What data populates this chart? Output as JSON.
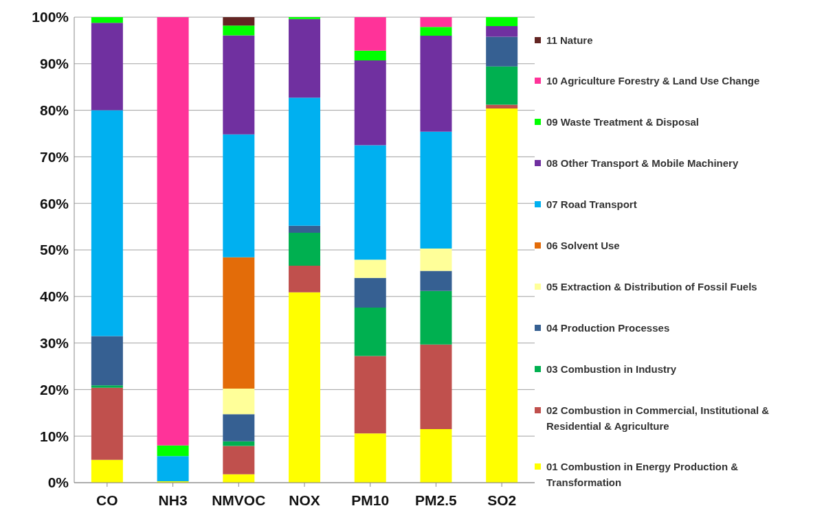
{
  "chart_data": {
    "type": "bar",
    "stacked": true,
    "categories": [
      "CO",
      "NH3",
      "NMVOC",
      "NOX",
      "PM10",
      "PM2.5",
      "SO2"
    ],
    "series": [
      {
        "name": "01 Combustion in Energy Production & Transformation",
        "color": "#ffff00",
        "values": [
          4.9,
          0.3,
          1.8,
          40.9,
          10.6,
          11.5,
          80.4
        ]
      },
      {
        "name": "02 Combustion in Commercial, Institutional & Residential & Agriculture",
        "color": "#c0504d",
        "values": [
          15.5,
          null,
          6.1,
          5.7,
          16.6,
          18.2,
          0.8
        ]
      },
      {
        "name": "03 Combustion in Industry",
        "color": "#00b050",
        "values": [
          0.5,
          null,
          1.0,
          7.1,
          10.4,
          11.5,
          8.2
        ]
      },
      {
        "name": "04 Production Processes",
        "color": "#366092",
        "values": [
          10.6,
          null,
          5.8,
          1.5,
          6.4,
          4.3,
          6.4
        ]
      },
      {
        "name": "05 Extraction & Distribution of Fossil Fuels",
        "color": "#ffff99",
        "values": [
          null,
          null,
          5.5,
          null,
          3.9,
          4.8,
          null
        ]
      },
      {
        "name": "06 Solvent Use",
        "color": "#e36c09",
        "values": [
          null,
          null,
          28.2,
          null,
          null,
          null,
          null
        ]
      },
      {
        "name": "07 Road Transport",
        "color": "#00b0f0",
        "values": [
          48.5,
          5.4,
          26.4,
          27.5,
          24.6,
          25.1,
          null
        ]
      },
      {
        "name": "08 Other Transport & Mobile Machinery",
        "color": "#7030a0",
        "values": [
          18.8,
          null,
          21.3,
          16.9,
          18.2,
          20.6,
          2.3
        ]
      },
      {
        "name": "09 Waste Treatment & Disposal",
        "color": "#00ff00",
        "values": [
          1.2,
          2.3,
          2.1,
          0.4,
          2.1,
          1.9,
          1.9
        ]
      },
      {
        "name": "10 Agriculture Forestry & Land Use Change",
        "color": "#ff3399",
        "values": [
          null,
          92.0,
          null,
          null,
          7.2,
          2.1,
          null
        ]
      },
      {
        "name": "11 Nature",
        "color": "#632523",
        "values": [
          null,
          null,
          1.8,
          null,
          null,
          null,
          null
        ]
      }
    ],
    "ylim": [
      0,
      100
    ],
    "yticks": [
      {
        "value": 0,
        "label": "0%"
      },
      {
        "value": 10,
        "label": "10%"
      },
      {
        "value": 20,
        "label": "20%"
      },
      {
        "value": 30,
        "label": "30%"
      },
      {
        "value": 40,
        "label": "40%"
      },
      {
        "value": 50,
        "label": "50%"
      },
      {
        "value": 60,
        "label": "60%"
      },
      {
        "value": 70,
        "label": "70%"
      },
      {
        "value": 80,
        "label": "80%"
      },
      {
        "value": 90,
        "label": "90%"
      },
      {
        "value": 100,
        "label": "100%"
      }
    ],
    "grid": "y",
    "legend": "right"
  }
}
